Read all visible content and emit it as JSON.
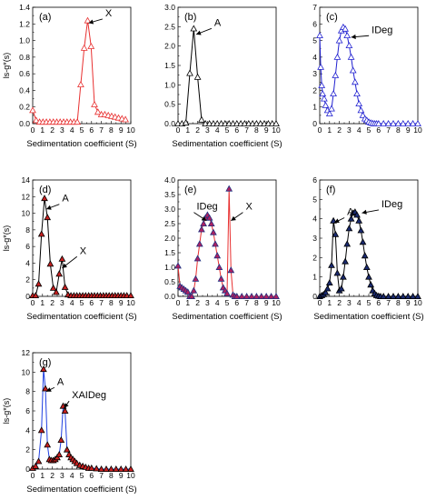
{
  "chart_data": [
    {
      "type": "line",
      "panel": "(a)",
      "line_color": "#e83030",
      "marker_fill": "#ffffff",
      "marker_stroke": "#e83030",
      "xlabel": "Sedimentation coefficient (S)",
      "ylabel": "ls-g*(s)",
      "xlim": [
        0,
        10
      ],
      "ylim": [
        0,
        1.4
      ],
      "x_ticks": [
        "0",
        "1",
        "2",
        "3",
        "4",
        "5",
        "6",
        "7",
        "8",
        "9",
        "10"
      ],
      "y_ticks": [
        "0.0",
        "0.2",
        "0.4",
        "0.6",
        "0.8",
        "1.0",
        "1.2",
        "1.4"
      ],
      "x": [
        0,
        0.35,
        0.7,
        1.05,
        1.4,
        1.75,
        2.1,
        2.45,
        2.8,
        3.15,
        3.5,
        3.85,
        4.2,
        4.55,
        4.9,
        5.25,
        5.6,
        5.95,
        6.3,
        6.65,
        7.0,
        7.35,
        7.7,
        8.05,
        8.4,
        8.75,
        9.1,
        9.45
      ],
      "y": [
        0.16,
        0.04,
        0.02,
        0.02,
        0.02,
        0.02,
        0.02,
        0.02,
        0.02,
        0.02,
        0.02,
        0.02,
        0.02,
        0.02,
        0.47,
        0.91,
        1.24,
        0.93,
        0.23,
        0.14,
        0.11,
        0.11,
        0.1,
        0.09,
        0.08,
        0.07,
        0.06,
        0.05
      ],
      "annotations": [
        {
          "text": "X",
          "x": 5.7,
          "y": 1.21,
          "tx": 7.3,
          "ty": 1.28
        }
      ]
    },
    {
      "type": "line",
      "panel": "(b)",
      "line_color": "#000000",
      "marker_fill": "#ffffff",
      "marker_stroke": "#000000",
      "xlabel": "Sedimentation coefficient (S)",
      "ylabel": "",
      "xlim": [
        0,
        10
      ],
      "ylim": [
        0,
        3.0
      ],
      "x_ticks": [
        "0",
        "1",
        "2",
        "3",
        "4",
        "5",
        "6",
        "7",
        "8",
        "9",
        "10"
      ],
      "y_ticks": [
        "0.0",
        "0.5",
        "1.0",
        "1.5",
        "2.0",
        "2.5",
        "3.0"
      ],
      "x": [
        0,
        0.4,
        0.8,
        1.2,
        1.6,
        2.0,
        2.4,
        2.8,
        3.2,
        3.6,
        4.0,
        4.4,
        4.8,
        5.2,
        5.6,
        6.0,
        6.4,
        6.8,
        7.2,
        7.6,
        8.0,
        8.4,
        8.8,
        9.2,
        9.6,
        10.0
      ],
      "y": [
        0.0,
        0.0,
        0.02,
        1.3,
        2.45,
        1.2,
        0.1,
        0.0,
        0.0,
        0.0,
        0.0,
        0.0,
        0.0,
        0.0,
        0.0,
        0.0,
        0.0,
        0.0,
        0.0,
        0.0,
        0.0,
        0.0,
        0.0,
        0.0,
        0.0,
        0.0
      ],
      "annotations": [
        {
          "text": "A",
          "x": 1.85,
          "y": 2.3,
          "tx": 3.6,
          "ty": 2.5
        }
      ]
    },
    {
      "type": "line",
      "panel": "(c)",
      "line_color": "#2020d0",
      "marker_fill": "#ffffff",
      "marker_stroke": "#2020d0",
      "xlabel": "",
      "ylabel": "",
      "xlim": [
        0,
        10
      ],
      "ylim": [
        0,
        7
      ],
      "x_ticks": [
        "0",
        "1",
        "2",
        "3",
        "4",
        "5",
        "6",
        "7",
        "8",
        "9",
        "10"
      ],
      "y_ticks": [
        "0",
        "1",
        "2",
        "3",
        "4",
        "5",
        "6",
        "7"
      ],
      "x": [
        0.0,
        0.1,
        0.2,
        0.3,
        0.45,
        0.6,
        0.8,
        1.0,
        1.2,
        1.4,
        1.6,
        1.8,
        2.0,
        2.2,
        2.4,
        2.6,
        2.8,
        3.0,
        3.2,
        3.4,
        3.6,
        3.8,
        4.0,
        4.2,
        4.4,
        4.6,
        4.8,
        5.0,
        5.2,
        5.4,
        5.6,
        5.8,
        6.0,
        6.5,
        7.0,
        7.5,
        8.0,
        8.5,
        9.0,
        9.5,
        10.0
      ],
      "y": [
        5.3,
        3.4,
        2.3,
        1.8,
        1.5,
        1.1,
        0.8,
        0.6,
        0.9,
        1.8,
        2.9,
        4.0,
        5.0,
        5.6,
        5.8,
        5.7,
        5.3,
        4.7,
        4.0,
        3.2,
        2.5,
        1.8,
        1.2,
        0.8,
        0.5,
        0.3,
        0.2,
        0.1,
        0.05,
        0.02,
        0.0,
        0.0,
        0.0,
        0.0,
        0.0,
        0.0,
        0.0,
        0.0,
        0.0,
        0.0,
        0.0
      ],
      "annotations": [
        {
          "text": "IDeg",
          "x": 3.2,
          "y": 5.2,
          "tx": 5.2,
          "ty": 5.4
        }
      ]
    },
    {
      "type": "line",
      "panel": "(d)",
      "line_color": "#000000",
      "marker_fill": "#c82020",
      "marker_stroke": "#000000",
      "xlabel": "Sedimentation coefficient (S)",
      "ylabel": "ls-g*(s)",
      "xlim": [
        0,
        10
      ],
      "ylim": [
        0,
        14
      ],
      "x_ticks": [
        "0",
        "1",
        "2",
        "3",
        "4",
        "5",
        "6",
        "7",
        "8",
        "9",
        "10"
      ],
      "y_ticks": [
        "0",
        "2",
        "4",
        "6",
        "8",
        "10",
        "12",
        "14"
      ],
      "x": [
        0,
        0.3,
        0.6,
        0.9,
        1.2,
        1.5,
        1.8,
        2.1,
        2.4,
        2.7,
        3.0,
        3.3,
        3.6,
        3.9,
        4.2,
        4.5,
        4.8,
        5.1,
        5.4,
        5.7,
        6.0,
        6.3,
        6.6,
        6.9,
        7.2,
        7.5,
        7.8,
        8.1,
        8.4,
        8.7,
        9.0,
        9.3,
        9.6,
        10.0
      ],
      "y": [
        0.1,
        0.1,
        1.5,
        7.5,
        11.8,
        9.5,
        3.9,
        1.0,
        0.5,
        2.7,
        4.5,
        1.1,
        0.2,
        0.1,
        0.1,
        0.1,
        0.1,
        0.1,
        0.1,
        0.1,
        0.1,
        0.1,
        0.1,
        0.1,
        0.1,
        0.1,
        0.1,
        0.1,
        0.1,
        0.1,
        0.1,
        0.1,
        0.1,
        0.1
      ],
      "annotations": [
        {
          "text": "A",
          "x": 1.4,
          "y": 10.5,
          "tx": 2.9,
          "ty": 11.3
        },
        {
          "text": "X",
          "x": 3.0,
          "y": 3.4,
          "tx": 4.7,
          "ty": 5.0
        }
      ]
    },
    {
      "type": "line",
      "panel": "(e)",
      "line_color": "#e83030",
      "marker_fill": "#b02060",
      "marker_stroke": "#203080",
      "xlabel": "Sedimentation coefficient (S)",
      "ylabel": "",
      "xlim": [
        0,
        10
      ],
      "ylim": [
        0,
        4.0
      ],
      "x_ticks": [
        "0",
        "1",
        "2",
        "3",
        "4",
        "5",
        "6",
        "7",
        "8",
        "9",
        "10"
      ],
      "y_ticks": [
        "0.0",
        "0.5",
        "1.0",
        "1.5",
        "2.0",
        "2.5",
        "3.0",
        "3.5",
        "4.0"
      ],
      "x": [
        0,
        0.2,
        0.4,
        0.6,
        0.8,
        1.0,
        1.2,
        1.4,
        1.6,
        1.8,
        2.0,
        2.2,
        2.4,
        2.6,
        2.8,
        3.0,
        3.2,
        3.4,
        3.6,
        3.8,
        4.0,
        4.2,
        4.4,
        4.6,
        4.8,
        5.0,
        5.2,
        5.4,
        5.6,
        5.8,
        6.0,
        6.5,
        7.0,
        7.5,
        8.0,
        8.5,
        9.0,
        9.5,
        10.0
      ],
      "y": [
        1.05,
        0.35,
        0.3,
        0.25,
        0.2,
        0.15,
        0.0,
        0.0,
        0.2,
        0.6,
        1.3,
        1.8,
        2.3,
        2.5,
        2.7,
        2.8,
        2.7,
        2.5,
        2.2,
        1.8,
        1.4,
        1.0,
        0.6,
        0.3,
        0.2,
        0.1,
        3.7,
        0.9,
        0.05,
        0.0,
        0.0,
        0.0,
        0.0,
        0.0,
        0.0,
        0.0,
        0.0,
        0.0,
        0.0
      ],
      "annotations": [
        {
          "text": "IDeg",
          "x": 2.9,
          "y": 2.6,
          "tx": 1.8,
          "ty": 2.95
        },
        {
          "text": "X",
          "x": 5.4,
          "y": 2.6,
          "tx": 6.8,
          "ty": 2.95
        }
      ]
    },
    {
      "type": "line",
      "panel": "(f)",
      "line_color": "#000000",
      "marker_fill": "#1a2a70",
      "marker_stroke": "#000000",
      "xlabel": "Sedimentation coefficient (S)",
      "ylabel": "",
      "xlim": [
        0,
        10
      ],
      "ylim": [
        0,
        6
      ],
      "x_ticks": [
        "0",
        "1",
        "2",
        "3",
        "4",
        "5",
        "6",
        "7",
        "8",
        "9",
        "10"
      ],
      "y_ticks": [
        "0",
        "1",
        "2",
        "3",
        "4",
        "5",
        "6"
      ],
      "x": [
        0,
        0.2,
        0.4,
        0.6,
        0.8,
        1.0,
        1.2,
        1.4,
        1.6,
        1.8,
        2.0,
        2.2,
        2.4,
        2.6,
        2.8,
        3.0,
        3.2,
        3.4,
        3.6,
        3.8,
        4.0,
        4.2,
        4.4,
        4.6,
        4.8,
        5.0,
        5.2,
        5.4,
        5.6,
        5.8,
        6.0,
        6.2,
        6.5,
        7.0,
        7.5,
        8.0,
        8.5,
        9.0,
        9.5,
        10.0
      ],
      "y": [
        0.0,
        0.05,
        0.1,
        0.2,
        0.4,
        0.7,
        1.6,
        3.9,
        3.2,
        1.2,
        0.3,
        0.4,
        1.0,
        1.8,
        2.7,
        3.5,
        4.0,
        4.3,
        4.35,
        4.2,
        3.9,
        3.4,
        2.8,
        2.1,
        1.5,
        1.0,
        0.6,
        0.3,
        0.15,
        0.05,
        0.02,
        0.0,
        0.0,
        0.0,
        0.0,
        0.0,
        0.0,
        0.0,
        0.0,
        0.0
      ],
      "annotations": [
        {
          "text": "A",
          "x": 1.5,
          "y": 3.8,
          "tx": 2.7,
          "ty": 4.15
        },
        {
          "text": "IDeg",
          "x": 4.3,
          "y": 4.3,
          "tx": 6.2,
          "ty": 4.55
        }
      ]
    },
    {
      "type": "line",
      "panel": "(g)",
      "line_color": "#2040e0",
      "marker_fill": "#c82020",
      "marker_stroke": "#000000",
      "xlabel": "Sedimentation coefficient (S)",
      "ylabel": "ls-g*(s)",
      "xlim": [
        0,
        10
      ],
      "ylim": [
        0,
        12
      ],
      "x_ticks": [
        "0",
        "1",
        "2",
        "3",
        "4",
        "5",
        "6",
        "7",
        "8",
        "9",
        "10"
      ],
      "y_ticks": [
        "0",
        "2",
        "4",
        "6",
        "8",
        "10",
        "12"
      ],
      "x": [
        0,
        0.3,
        0.6,
        0.9,
        1.1,
        1.3,
        1.5,
        1.7,
        1.9,
        2.1,
        2.3,
        2.5,
        2.7,
        2.9,
        3.1,
        3.3,
        3.5,
        3.7,
        3.9,
        4.1,
        4.3,
        4.5,
        4.8,
        5.1,
        5.4,
        5.7,
        6.0,
        6.5,
        7.0,
        7.5,
        8.0,
        8.5,
        9.0,
        9.5,
        10.0
      ],
      "y": [
        0.1,
        0.3,
        0.8,
        4.0,
        10.3,
        8.3,
        2.5,
        1.0,
        0.9,
        0.9,
        1.0,
        1.2,
        1.5,
        3.0,
        6.5,
        6.0,
        2.0,
        1.5,
        1.2,
        1.0,
        0.8,
        0.6,
        0.4,
        0.3,
        0.2,
        0.1,
        0.1,
        0.05,
        0.0,
        0.0,
        0.0,
        0.0,
        0.0,
        0.0,
        0.0
      ],
      "annotations": [
        {
          "text": "A",
          "x": 1.4,
          "y": 8.0,
          "tx": 2.4,
          "ty": 8.6
        },
        {
          "text": "XAIDeg",
          "x": 3.2,
          "y": 6.3,
          "tx": 3.9,
          "ty": 7.2
        }
      ]
    }
  ]
}
